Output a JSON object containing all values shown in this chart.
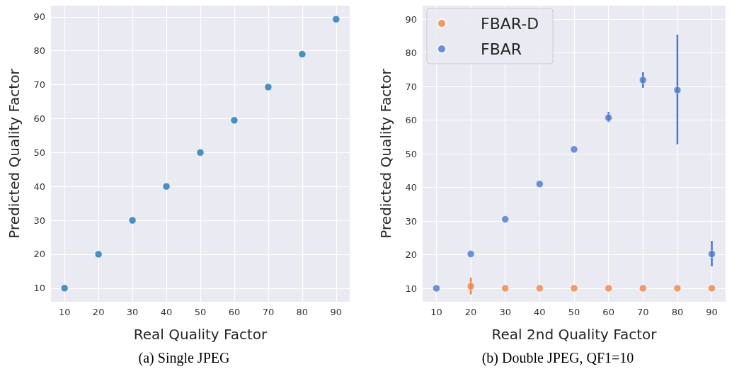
{
  "chart_data": [
    {
      "type": "scatter",
      "title": "(a) Single JPEG",
      "xlabel": "Real Quality Factor",
      "ylabel": "Predicted Quality Factor",
      "x": [
        10,
        20,
        30,
        40,
        50,
        60,
        70,
        80,
        90
      ],
      "series": [
        {
          "color": "#1f77b4",
          "values": [
            10,
            20,
            30,
            40,
            50,
            59.5,
            69.3,
            79,
            89.3
          ]
        }
      ],
      "xlim": [
        6,
        94
      ],
      "ylim": [
        6,
        93.3
      ],
      "xticks": [
        10,
        20,
        30,
        40,
        50,
        60,
        70,
        80,
        90
      ],
      "yticks": [
        10,
        20,
        30,
        40,
        50,
        60,
        70,
        80,
        90
      ],
      "grid": true,
      "marker": "circle"
    },
    {
      "type": "scatter",
      "title": "(b) Double JPEG, QF1=10",
      "xlabel": "Real 2nd Quality Factor",
      "ylabel": "Predicted Quality Factor",
      "x": [
        10,
        20,
        30,
        40,
        50,
        60,
        70,
        80,
        90
      ],
      "series": [
        {
          "name": "FBAR-D",
          "color": "#ee854a",
          "values": [
            null,
            10.6,
            10,
            10,
            10,
            10,
            10,
            10,
            10
          ],
          "errors": [
            null,
            [
              8.2,
              13.2
            ],
            null,
            null,
            null,
            null,
            null,
            null,
            null
          ]
        },
        {
          "name": "FBAR",
          "color": "#4878d0",
          "values": [
            10,
            20.2,
            30.5,
            41,
            51.3,
            60.7,
            71.9,
            68.9,
            20.2
          ],
          "errors": [
            null,
            null,
            null,
            null,
            null,
            [
              59.4,
              62.4
            ],
            [
              69.6,
              74.2
            ],
            [
              52.8,
              85.4
            ],
            [
              16.5,
              24.1
            ]
          ]
        }
      ],
      "xlim": [
        6,
        94
      ],
      "ylim": [
        6,
        94
      ],
      "xticks": [
        10,
        20,
        30,
        40,
        50,
        60,
        70,
        80,
        90
      ],
      "yticks": [
        10,
        20,
        30,
        40,
        50,
        60,
        70,
        80,
        90
      ],
      "grid": true,
      "marker": "circle",
      "legend": "top left"
    }
  ]
}
